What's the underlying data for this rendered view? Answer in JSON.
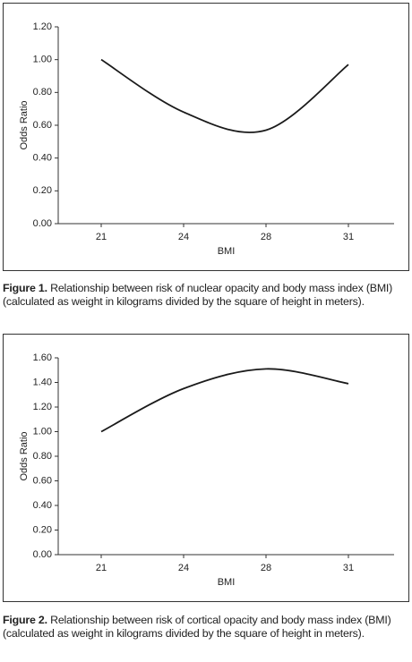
{
  "chart_data": [
    {
      "type": "line",
      "x_label": "BMI",
      "y_label": "Odds Ratio",
      "categories": [
        "21",
        "24",
        "28",
        "31"
      ],
      "values": [
        1.0,
        0.68,
        0.57,
        0.97
      ],
      "color": "#1a1a1a",
      "ylim": [
        0,
        1.2
      ],
      "yticks": [
        {
          "value": 0,
          "label": "0.00"
        },
        {
          "value": 0.2,
          "label": "0.20"
        },
        {
          "value": 0.4,
          "label": "0.40"
        },
        {
          "value": 0.6,
          "label": "0.60"
        },
        {
          "value": 0.8,
          "label": "0.80"
        },
        {
          "value": 1.0,
          "label": "1.00"
        },
        {
          "value": 1.2,
          "label": "1.20"
        }
      ],
      "caption_label": "Figure 1.",
      "caption": "Relationship between risk of nuclear opacity and body mass index (BMI) (calculated as weight in kilograms divided by the square of height in meters)."
    },
    {
      "type": "line",
      "x_label": "BMI",
      "y_label": "Odds Ratio",
      "categories": [
        "21",
        "24",
        "28",
        "31"
      ],
      "values": [
        1.0,
        1.35,
        1.51,
        1.39
      ],
      "color": "#1a1a1a",
      "ylim": [
        0,
        1.6
      ],
      "yticks": [
        {
          "value": 0,
          "label": "0.00"
        },
        {
          "value": 0.2,
          "label": "0.20"
        },
        {
          "value": 0.4,
          "label": "0.40"
        },
        {
          "value": 0.6,
          "label": "0.60"
        },
        {
          "value": 0.8,
          "label": "0.80"
        },
        {
          "value": 1.0,
          "label": "1.00"
        },
        {
          "value": 1.2,
          "label": "1.20"
        },
        {
          "value": 1.4,
          "label": "1.40"
        },
        {
          "value": 1.6,
          "label": "1.60"
        }
      ],
      "caption_label": "Figure 2.",
      "caption": "Relationship between risk of cortical opacity and body mass index (BMI) (calculated as weight in kilograms divided by the square of height in meters)."
    }
  ]
}
